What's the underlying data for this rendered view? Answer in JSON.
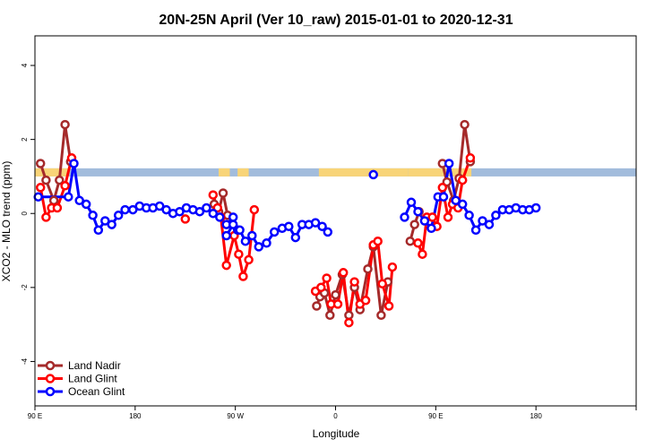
{
  "chart_data": {
    "type": "line",
    "title": "20N-25N April (Ver 10_raw)   2015-01-01 to 2020-12-31",
    "xlabel": "Longitude",
    "ylabel": "XCO2 - MLO trend (ppm)",
    "xlim": [
      0,
      540
    ],
    "ylim": [
      -5.2,
      4.8
    ],
    "x_ticks": [
      {
        "value": 0,
        "label": "90 E"
      },
      {
        "value": 90,
        "label": "180"
      },
      {
        "value": 180,
        "label": "90 W"
      },
      {
        "value": 270,
        "label": "0"
      },
      {
        "value": 360,
        "label": "90 E"
      },
      {
        "value": 450,
        "label": "180"
      }
    ],
    "y_ticks": [
      {
        "value": -4,
        "label": "-4"
      },
      {
        "value": -2,
        "label": "-2"
      },
      {
        "value": 0,
        "label": "0"
      },
      {
        "value": 2,
        "label": "2"
      },
      {
        "value": 4,
        "label": "4"
      }
    ],
    "grid": false,
    "legend_position": "bottom-left",
    "land_strip": {
      "y_range": [
        1.0,
        1.22
      ],
      "ocean_color": "#a2bcdc",
      "land_color": "#f8d478",
      "land_segments": [
        [
          0,
          30
        ],
        [
          165,
          175
        ],
        [
          182,
          192
        ],
        [
          255,
          335
        ],
        [
          335,
          392
        ]
      ]
    },
    "series": [
      {
        "name": "Land Nadir",
        "color": "#a52a2a",
        "points": [
          [
            5,
            1.35
          ],
          [
            10,
            0.9
          ],
          [
            17,
            0.35
          ],
          [
            22,
            0.9
          ],
          [
            27,
            2.4
          ],
          [
            32,
            1.4
          ],
          [
            161,
            0.25
          ],
          [
            165,
            0.05
          ],
          [
            169,
            0.55
          ],
          [
            173,
            -0.05
          ],
          [
            253,
            -2.5
          ],
          [
            256,
            -2.25
          ],
          [
            260,
            -2.15
          ],
          [
            265,
            -2.75
          ],
          [
            270,
            -2.2
          ],
          [
            276,
            -1.65
          ],
          [
            282,
            -2.75
          ],
          [
            287,
            -2.0
          ],
          [
            292,
            -2.6
          ],
          [
            299,
            -1.5
          ],
          [
            304,
            -0.9
          ],
          [
            311,
            -2.75
          ],
          [
            317,
            -1.85
          ],
          [
            366,
            1.35
          ],
          [
            370,
            0.85
          ],
          [
            376,
            0.35
          ],
          [
            381,
            0.95
          ],
          [
            386,
            2.4
          ],
          [
            391,
            1.4
          ],
          [
            337,
            -0.75
          ],
          [
            341,
            -0.3
          ],
          [
            345,
            0.05
          ]
        ],
        "segments": [
          [
            0,
            6
          ],
          [
            6,
            10
          ],
          [
            10,
            23
          ],
          [
            23,
            29
          ],
          [
            29,
            32
          ]
        ]
      },
      {
        "name": "Land Glint",
        "color": "#ff0000",
        "points": [
          [
            5,
            0.7
          ],
          [
            10,
            -0.1
          ],
          [
            15,
            0.15
          ],
          [
            20,
            0.15
          ],
          [
            27,
            0.75
          ],
          [
            33,
            1.5
          ],
          [
            135,
            -0.15
          ],
          [
            160,
            0.5
          ],
          [
            164,
            0.15
          ],
          [
            167,
            -0.1
          ],
          [
            172,
            -1.4
          ],
          [
            179,
            -0.6
          ],
          [
            183,
            -1.1
          ],
          [
            187,
            -1.7
          ],
          [
            192,
            -1.25
          ],
          [
            197,
            0.1
          ],
          [
            252,
            -2.1
          ],
          [
            257,
            -2.0
          ],
          [
            262,
            -1.75
          ],
          [
            266,
            -2.45
          ],
          [
            272,
            -2.45
          ],
          [
            277,
            -1.6
          ],
          [
            282,
            -2.95
          ],
          [
            287,
            -1.85
          ],
          [
            292,
            -2.45
          ],
          [
            297,
            -2.35
          ],
          [
            304,
            -0.85
          ],
          [
            308,
            -0.75
          ],
          [
            312,
            -1.9
          ],
          [
            318,
            -2.5
          ],
          [
            321,
            -1.45
          ],
          [
            344,
            -0.8
          ],
          [
            348,
            -1.1
          ],
          [
            352,
            -0.1
          ],
          [
            357,
            -0.1
          ],
          [
            361,
            -0.35
          ],
          [
            366,
            0.7
          ],
          [
            371,
            -0.1
          ],
          [
            375,
            0.25
          ],
          [
            380,
            0.15
          ],
          [
            384,
            0.9
          ],
          [
            391,
            1.5
          ]
        ],
        "segments": [
          [
            0,
            6
          ],
          [
            6,
            7
          ],
          [
            7,
            16
          ],
          [
            16,
            31
          ],
          [
            31,
            42
          ]
        ]
      },
      {
        "name": "Ocean Glint",
        "color": "#0000ff",
        "points": [
          [
            3,
            0.45
          ],
          [
            30,
            0.45
          ],
          [
            35,
            1.35
          ],
          [
            40,
            0.35
          ],
          [
            46,
            0.25
          ],
          [
            52,
            -0.05
          ],
          [
            57,
            -0.45
          ],
          [
            63,
            -0.2
          ],
          [
            69,
            -0.3
          ],
          [
            75,
            -0.05
          ],
          [
            81,
            0.1
          ],
          [
            88,
            0.1
          ],
          [
            94,
            0.2
          ],
          [
            100,
            0.15
          ],
          [
            106,
            0.15
          ],
          [
            112,
            0.2
          ],
          [
            118,
            0.1
          ],
          [
            124,
            0.0
          ],
          [
            130,
            0.05
          ],
          [
            136,
            0.15
          ],
          [
            142,
            0.1
          ],
          [
            148,
            0.05
          ],
          [
            154,
            0.15
          ],
          [
            160,
            0.0
          ],
          [
            166,
            -0.1
          ],
          [
            172,
            -0.3
          ],
          [
            178,
            -0.1
          ],
          [
            182,
            -0.45
          ],
          [
            172,
            -0.6
          ],
          [
            178,
            -0.3
          ],
          [
            184,
            -0.45
          ],
          [
            189,
            -0.75
          ],
          [
            195,
            -0.6
          ],
          [
            201,
            -0.9
          ],
          [
            208,
            -0.8
          ],
          [
            215,
            -0.5
          ],
          [
            222,
            -0.4
          ],
          [
            228,
            -0.35
          ],
          [
            234,
            -0.65
          ],
          [
            240,
            -0.3
          ],
          [
            246,
            -0.3
          ],
          [
            252,
            -0.25
          ],
          [
            258,
            -0.35
          ],
          [
            263,
            -0.5
          ],
          [
            304,
            1.05
          ],
          [
            332,
            -0.1
          ],
          [
            338,
            0.3
          ],
          [
            344,
            0.05
          ],
          [
            350,
            -0.2
          ],
          [
            356,
            -0.4
          ],
          [
            362,
            0.45
          ],
          [
            367,
            0.45
          ],
          [
            372,
            1.35
          ],
          [
            378,
            0.35
          ],
          [
            384,
            0.25
          ],
          [
            390,
            -0.05
          ],
          [
            396,
            -0.45
          ],
          [
            402,
            -0.2
          ],
          [
            408,
            -0.3
          ],
          [
            414,
            -0.05
          ],
          [
            420,
            0.1
          ],
          [
            426,
            0.1
          ],
          [
            432,
            0.15
          ],
          [
            438,
            0.1
          ],
          [
            444,
            0.1
          ],
          [
            450,
            0.15
          ]
        ],
        "segments": [
          [
            0,
            28
          ],
          [
            28,
            44
          ],
          [
            44,
            45
          ],
          [
            45,
            66
          ]
        ]
      }
    ]
  }
}
